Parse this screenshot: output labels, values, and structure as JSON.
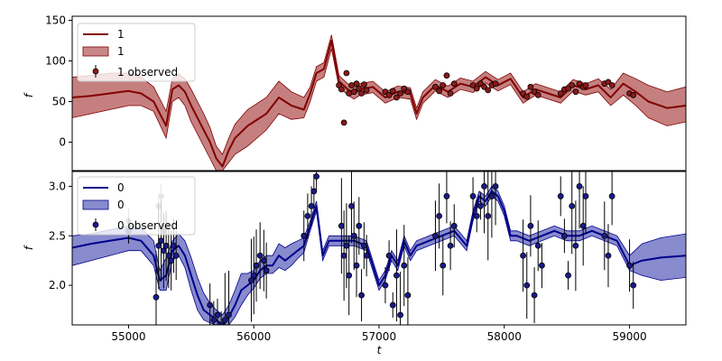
{
  "chart_data": [
    {
      "type": "line",
      "panel": "top",
      "xlabel": "",
      "ylabel": "f",
      "xlim": [
        54550,
        59450
      ],
      "ylim": [
        -35,
        155
      ],
      "yticks": [
        0,
        50,
        100,
        150
      ],
      "grid": false,
      "legend_position": "top-left",
      "legend": [
        "1",
        "1",
        "1 observed"
      ],
      "colors": {
        "line": "#800000",
        "band": "#b35454",
        "points": "#8b1a1a"
      },
      "series": [
        {
          "name": "1",
          "kind": "model-line",
          "x": [
            54550,
            54700,
            54850,
            55000,
            55100,
            55200,
            55300,
            55350,
            55400,
            55450,
            55500,
            55600,
            55650,
            55700,
            55750,
            55800,
            55850,
            55950,
            56100,
            56200,
            56300,
            56400,
            56450,
            56500,
            56560,
            56620,
            56680,
            56750,
            56800,
            56850,
            56950,
            57050,
            57150,
            57250,
            57300,
            57350,
            57450,
            57550,
            57650,
            57750,
            57850,
            57950,
            58050,
            58150,
            58250,
            58350,
            58450,
            58550,
            58650,
            58750,
            58850,
            58950,
            59050,
            59150,
            59300,
            59450
          ],
          "y": [
            55,
            57,
            60,
            63,
            60,
            50,
            20,
            65,
            70,
            62,
            45,
            15,
            0,
            -20,
            -30,
            -10,
            5,
            20,
            35,
            55,
            45,
            40,
            60,
            85,
            90,
            125,
            75,
            65,
            60,
            65,
            68,
            55,
            62,
            60,
            35,
            55,
            70,
            62,
            72,
            68,
            80,
            70,
            78,
            55,
            65,
            60,
            55,
            70,
            65,
            70,
            55,
            72,
            62,
            50,
            42,
            45
          ]
        },
        {
          "name": "1",
          "kind": "uncertainty-band",
          "x": [
            54550,
            54700,
            54850,
            55000,
            55100,
            55200,
            55300,
            55350,
            55400,
            55450,
            55500,
            55600,
            55650,
            55700,
            55750,
            55800,
            55850,
            55950,
            56100,
            56200,
            56300,
            56400,
            56450,
            56500,
            56560,
            56620,
            56680,
            56750,
            56800,
            56850,
            56950,
            57050,
            57150,
            57250,
            57300,
            57350,
            57450,
            57550,
            57650,
            57750,
            57850,
            57950,
            58050,
            58150,
            58250,
            58350,
            58450,
            58550,
            58650,
            58750,
            58850,
            58950,
            59050,
            59150,
            59300,
            59450
          ],
          "lower": [
            30,
            35,
            40,
            45,
            45,
            38,
            5,
            50,
            55,
            45,
            25,
            -5,
            -20,
            -35,
            -35,
            -25,
            -15,
            -5,
            15,
            35,
            28,
            30,
            50,
            75,
            80,
            115,
            68,
            58,
            53,
            58,
            61,
            48,
            55,
            53,
            28,
            48,
            63,
            55,
            65,
            61,
            73,
            63,
            71,
            48,
            58,
            53,
            48,
            63,
            58,
            62,
            45,
            58,
            45,
            30,
            20,
            25
          ],
          "upper": [
            80,
            82,
            85,
            85,
            80,
            68,
            38,
            78,
            84,
            78,
            65,
            35,
            18,
            -5,
            -15,
            5,
            22,
            40,
            55,
            75,
            62,
            55,
            68,
            93,
            98,
            132,
            82,
            72,
            67,
            72,
            75,
            62,
            69,
            67,
            42,
            62,
            77,
            69,
            79,
            75,
            87,
            77,
            85,
            62,
            72,
            67,
            62,
            77,
            72,
            78,
            65,
            85,
            78,
            70,
            62,
            68
          ]
        },
        {
          "name": "1 observed",
          "kind": "observed-points",
          "x": [
            56680,
            56700,
            56720,
            56740,
            56760,
            56780,
            56800,
            56820,
            56840,
            56860,
            56880,
            56900,
            57050,
            57080,
            57110,
            57140,
            57170,
            57200,
            57230,
            57450,
            57480,
            57510,
            57540,
            57570,
            57600,
            57750,
            57780,
            57810,
            57840,
            57870,
            57900,
            57930,
            58150,
            58180,
            58210,
            58240,
            58270,
            58450,
            58480,
            58510,
            58540,
            58570,
            58600,
            58630,
            58650,
            58800,
            58830,
            58860,
            59000,
            59030
          ],
          "y": [
            70,
            65,
            24,
            85,
            60,
            70,
            62,
            72,
            66,
            60,
            71,
            64,
            62,
            58,
            63,
            55,
            60,
            66,
            62,
            68,
            63,
            70,
            82,
            60,
            72,
            70,
            66,
            72,
            68,
            64,
            70,
            72,
            60,
            56,
            68,
            62,
            58,
            60,
            65,
            66,
            70,
            62,
            72,
            68,
            70,
            72,
            74,
            70,
            60,
            58
          ]
        }
      ]
    },
    {
      "type": "line",
      "panel": "bottom",
      "xlabel": "t",
      "ylabel": "f",
      "xlim": [
        54550,
        59450
      ],
      "ylim": [
        1.6,
        3.15
      ],
      "xticks": [
        55000,
        56000,
        57000,
        58000,
        59000
      ],
      "yticks": [
        2.0,
        2.5,
        3.0
      ],
      "grid": false,
      "legend_position": "top-left",
      "legend": [
        "0",
        "0",
        "0 observed"
      ],
      "colors": {
        "line": "#00008b",
        "band": "#6a6ec0",
        "points": "#1a1a8b",
        "error": "#000000",
        "faded": "#7a7f8f"
      },
      "series": [
        {
          "name": "0",
          "kind": "model-line",
          "x": [
            54550,
            54700,
            54850,
            55000,
            55100,
            55200,
            55250,
            55300,
            55350,
            55400,
            55450,
            55500,
            55550,
            55600,
            55650,
            55700,
            55750,
            55800,
            55850,
            55900,
            55950,
            56000,
            56050,
            56100,
            56150,
            56200,
            56250,
            56300,
            56350,
            56400,
            56450,
            56500,
            56550,
            56600,
            56650,
            56700,
            56800,
            56900,
            57000,
            57050,
            57100,
            57150,
            57200,
            57250,
            57300,
            57400,
            57500,
            57600,
            57700,
            57750,
            57800,
            57850,
            57900,
            57950,
            58000,
            58050,
            58100,
            58200,
            58300,
            58400,
            58500,
            58600,
            58700,
            58800,
            58900,
            59000,
            59100,
            59250,
            59450
          ],
          "y": [
            2.38,
            2.42,
            2.45,
            2.48,
            2.45,
            2.3,
            2.05,
            2.1,
            2.35,
            2.4,
            2.3,
            2.1,
            1.9,
            1.75,
            1.7,
            1.65,
            1.6,
            1.68,
            1.8,
            1.95,
            2.0,
            2.05,
            2.15,
            2.2,
            2.2,
            2.3,
            2.25,
            2.3,
            2.35,
            2.4,
            2.6,
            2.8,
            2.3,
            2.45,
            2.45,
            2.45,
            2.45,
            2.4,
            2.0,
            2.1,
            2.3,
            2.2,
            2.45,
            2.3,
            2.4,
            2.45,
            2.5,
            2.55,
            2.4,
            2.7,
            2.9,
            2.85,
            2.95,
            2.9,
            2.75,
            2.5,
            2.5,
            2.45,
            2.5,
            2.55,
            2.5,
            2.5,
            2.55,
            2.5,
            2.45,
            2.2,
            2.25,
            2.28,
            2.3
          ]
        },
        {
          "name": "0",
          "kind": "uncertainty-band",
          "x": [
            54550,
            54700,
            54850,
            55000,
            55100,
            55200,
            55250,
            55300,
            55350,
            55400,
            55450,
            55500,
            55550,
            55600,
            55650,
            55700,
            55750,
            55800,
            55850,
            55900,
            55950,
            56000,
            56050,
            56100,
            56150,
            56200,
            56250,
            56300,
            56350,
            56400,
            56450,
            56500,
            56550,
            56600,
            56650,
            56700,
            56800,
            56900,
            57000,
            57050,
            57100,
            57150,
            57200,
            57250,
            57300,
            57400,
            57500,
            57600,
            57700,
            57750,
            57800,
            57850,
            57900,
            57950,
            58000,
            58050,
            58100,
            58200,
            58300,
            58400,
            58500,
            58600,
            58700,
            58800,
            58900,
            59000,
            59100,
            59250,
            59450
          ],
          "lower": [
            2.2,
            2.25,
            2.3,
            2.35,
            2.35,
            2.2,
            1.95,
            1.95,
            2.25,
            2.3,
            2.18,
            1.95,
            1.75,
            1.65,
            1.62,
            1.6,
            1.6,
            1.6,
            1.68,
            1.8,
            1.9,
            1.97,
            2.07,
            2.12,
            2.12,
            2.18,
            2.15,
            2.2,
            2.27,
            2.33,
            2.55,
            2.75,
            2.25,
            2.4,
            2.4,
            2.4,
            2.4,
            2.35,
            1.95,
            2.05,
            2.25,
            2.15,
            2.4,
            2.25,
            2.35,
            2.4,
            2.45,
            2.5,
            2.35,
            2.65,
            2.85,
            2.8,
            2.9,
            2.85,
            2.7,
            2.45,
            2.45,
            2.4,
            2.45,
            2.5,
            2.45,
            2.45,
            2.5,
            2.45,
            2.4,
            2.15,
            2.1,
            2.05,
            2.08
          ],
          "upper": [
            2.5,
            2.52,
            2.56,
            2.6,
            2.58,
            2.45,
            2.15,
            2.28,
            2.45,
            2.52,
            2.45,
            2.28,
            2.08,
            1.92,
            1.82,
            1.75,
            1.7,
            1.8,
            1.95,
            2.12,
            2.12,
            2.15,
            2.25,
            2.3,
            2.3,
            2.42,
            2.38,
            2.42,
            2.45,
            2.48,
            2.65,
            2.85,
            2.35,
            2.5,
            2.5,
            2.5,
            2.5,
            2.45,
            2.05,
            2.15,
            2.35,
            2.25,
            2.5,
            2.35,
            2.45,
            2.5,
            2.55,
            2.6,
            2.45,
            2.75,
            2.95,
            2.9,
            3.0,
            2.95,
            2.8,
            2.55,
            2.55,
            2.5,
            2.55,
            2.6,
            2.55,
            2.55,
            2.6,
            2.55,
            2.5,
            2.3,
            2.42,
            2.48,
            2.52
          ]
        },
        {
          "name": "0 observed",
          "kind": "observed-points",
          "x": [
            55000,
            55220,
            55240,
            55260,
            55280,
            55300,
            55320,
            55340,
            55360,
            55380,
            55650,
            55680,
            55710,
            55740,
            55770,
            55800,
            55980,
            56000,
            56020,
            56050,
            56080,
            56100,
            56400,
            56430,
            56460,
            56480,
            56500,
            56700,
            56720,
            56740,
            56760,
            56780,
            56800,
            56820,
            56840,
            56860,
            56880,
            56900,
            57050,
            57080,
            57110,
            57140,
            57170,
            57200,
            57230,
            57450,
            57480,
            57510,
            57540,
            57570,
            57600,
            57750,
            57780,
            57810,
            57840,
            57870,
            57900,
            57930,
            58150,
            58180,
            58210,
            58240,
            58270,
            58300,
            58450,
            58480,
            58510,
            58540,
            58570,
            58600,
            58630,
            58650,
            58800,
            58830,
            58860,
            59000,
            59030
          ],
          "y": [
            2.55,
            1.88,
            2.4,
            2.45,
            2.35,
            2.4,
            2.3,
            2.25,
            2.4,
            2.3,
            1.8,
            1.65,
            1.7,
            1.6,
            1.65,
            1.7,
            2.05,
            2.1,
            2.2,
            2.3,
            2.25,
            2.15,
            2.5,
            2.7,
            2.8,
            2.95,
            3.1,
            2.6,
            2.3,
            2.4,
            2.1,
            2.8,
            2.5,
            2.2,
            2.6,
            1.9,
            2.4,
            2.3,
            2.0,
            2.3,
            1.8,
            2.1,
            1.7,
            2.2,
            1.9,
            2.5,
            2.7,
            2.2,
            2.9,
            2.4,
            2.6,
            2.9,
            2.7,
            2.8,
            3.0,
            2.7,
            2.9,
            3.0,
            2.3,
            2.0,
            2.6,
            1.9,
            2.4,
            2.2,
            2.9,
            2.5,
            2.1,
            2.8,
            2.4,
            3.0,
            2.6,
            2.9,
            2.5,
            2.3,
            2.9,
            2.2,
            2.0
          ]
        },
        {
          "name": "0 observed",
          "kind": "faded-points",
          "x": [
            55000,
            55240,
            55260,
            55280,
            55300
          ],
          "y": [
            2.65,
            2.8,
            2.9,
            2.55,
            2.6
          ]
        }
      ]
    }
  ]
}
